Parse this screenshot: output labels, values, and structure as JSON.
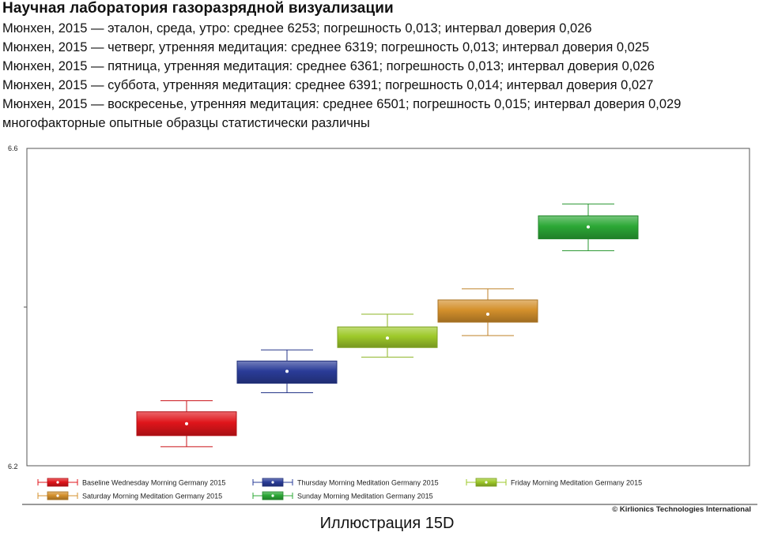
{
  "heading": "Научная лаборатория газоразрядной визуализации",
  "lines": [
    "Мюнхен, 2015 — эталон, среда, утро: среднее 6253; погрешность 0,013; интервал доверия 0,026",
    "Мюнхен, 2015 — четверг, утренняя медитация: среднее 6319; погрешность 0,013; интервал доверия 0,025",
    "Мюнхен, 2015 — пятница, утренняя медитация: среднее 6361; погрешность 0,013; интервал доверия 0,026",
    "Мюнхен, 2015 — суббота, утренняя медитация: среднее 6391; погрешность 0,014; интервал доверия 0,027",
    "Мюнхен, 2015 — воскресенье, утренняя медитация: среднее 6501; погрешность 0,015; интервал доверия 0,029",
    "многофакторные опытные образцы статистически различны"
  ],
  "caption": "Иллюстрация 15D",
  "chart_data": {
    "type": "box",
    "ylim": [
      6.2,
      6.6
    ],
    "yticks": [
      "6.6",
      "6.2"
    ],
    "grid": false,
    "legend_position": "bottom",
    "copyright": "© Kirlionics Technologies International",
    "series": [
      {
        "name": "Baseline Wednesday Morning Germany 2015",
        "color": "#e0151b",
        "mean": 6.253,
        "q1": 6.238,
        "q3": 6.268,
        "whisker_low": 6.224,
        "whisker_high": 6.282
      },
      {
        "name": "Thursday Morning Meditation Germany 2015",
        "color": "#2a3c98",
        "mean": 6.319,
        "q1": 6.304,
        "q3": 6.332,
        "whisker_low": 6.292,
        "whisker_high": 6.346
      },
      {
        "name": "Friday Morning Meditation Germany 2015",
        "color": "#9ec92a",
        "mean": 6.361,
        "q1": 6.349,
        "q3": 6.375,
        "whisker_low": 6.337,
        "whisker_high": 6.391
      },
      {
        "name": "Saturday Morning Meditation Germany 2015",
        "color": "#d4902c",
        "mean": 6.391,
        "q1": 6.381,
        "q3": 6.409,
        "whisker_low": 6.364,
        "whisker_high": 6.423
      },
      {
        "name": "Sunday Morning Meditation Germany 2015",
        "color": "#2ca836",
        "mean": 6.501,
        "q1": 6.486,
        "q3": 6.515,
        "whisker_low": 6.471,
        "whisker_high": 6.53
      }
    ]
  }
}
